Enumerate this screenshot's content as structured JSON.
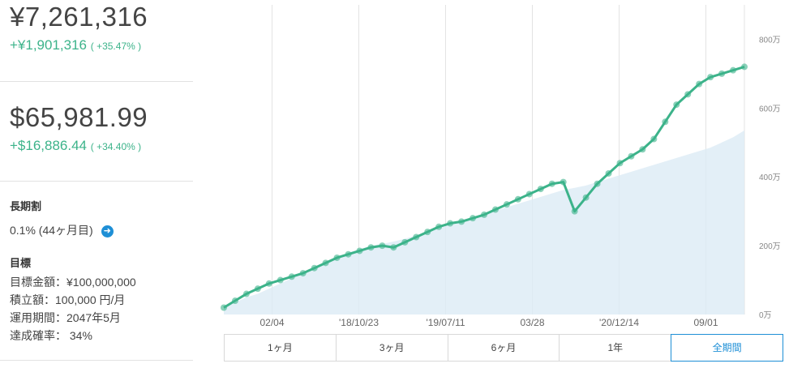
{
  "summary": {
    "jpy_total": "¥7,261,316",
    "jpy_gain": "+¥1,901,316",
    "jpy_gain_pct": "( +35.47% )",
    "usd_total": "$65,981.99",
    "usd_gain": "+$16,886.44",
    "usd_gain_pct": "( +34.40% )"
  },
  "long_term": {
    "title": "長期割",
    "value": "0.1% (44ヶ月目)"
  },
  "goal": {
    "title": "目標",
    "lines": [
      "目標金額：¥100,000,000",
      "積立額：100,000 円/月",
      "運用期間：2047年5月",
      "達成確率： 34%"
    ]
  },
  "range_tabs": [
    "1ヶ月",
    "3ヶ月",
    "6ヶ月",
    "1年",
    "全期間"
  ],
  "active_tab": "全期間",
  "colors": {
    "line": "#3cb38a",
    "fill": "#dcebf5",
    "accent": "#1e8fd6",
    "gain": "#3cb38a"
  },
  "chart_data": {
    "type": "line",
    "x_ticks": [
      "02/04",
      "'18/10/23",
      "'19/07/11",
      "03/28",
      "'20/12/14",
      "09/01"
    ],
    "y_ticks": [
      "0万",
      "200万",
      "400万",
      "600万",
      "800万"
    ],
    "ylim": [
      0,
      900
    ],
    "series": [
      {
        "values": [
          20,
          40,
          60,
          75,
          90,
          100,
          110,
          120,
          135,
          150,
          165,
          175,
          185,
          195,
          200,
          195,
          210,
          225,
          240,
          255,
          265,
          270,
          280,
          290,
          305,
          320,
          335,
          350,
          365,
          380,
          385,
          300,
          340,
          380,
          410,
          440,
          460,
          480,
          510,
          560,
          610,
          640,
          670,
          690,
          700,
          710,
          720
        ]
      },
      {
        "values": [
          20,
          35,
          50,
          60,
          75,
          90,
          105,
          120,
          135,
          150,
          165,
          180,
          190,
          200,
          205,
          212,
          220,
          230,
          240,
          250,
          262,
          272,
          282,
          292,
          302,
          312,
          322,
          332,
          342,
          352,
          362,
          368,
          375,
          385,
          395,
          405,
          415,
          425,
          435,
          445,
          455,
          465,
          475,
          485,
          500,
          515,
          535
        ]
      }
    ]
  }
}
